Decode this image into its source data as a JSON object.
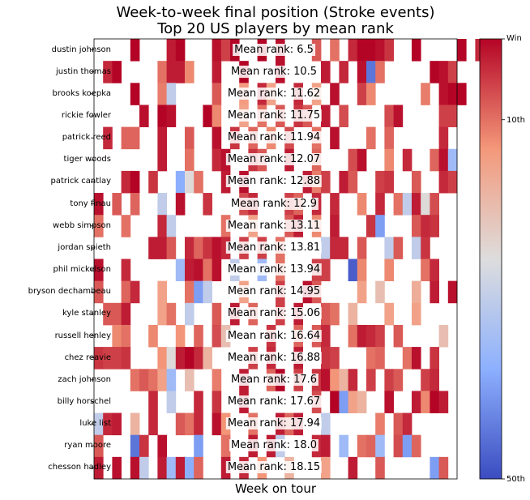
{
  "chart_data": {
    "type": "heatmap",
    "title": "Week-to-week final position (Stroke events)",
    "subtitle": "Top 20 US players by mean rank",
    "xlabel": "Week on tour",
    "colorbar": {
      "colormap": "coolwarm",
      "ticks": [
        "Win",
        "10th",
        "50th"
      ],
      "domain": [
        1,
        50
      ],
      "low_color": "#b40426",
      "high_color": "#3b4cc0"
    },
    "players": [
      {
        "name": "dustin johnson",
        "mean_label": "Mean rank: 6.5"
      },
      {
        "name": "justin thomas",
        "mean_label": "Mean rank: 10.5"
      },
      {
        "name": "brooks koepka",
        "mean_label": "Mean rank: 11.62"
      },
      {
        "name": "rickie fowler",
        "mean_label": "Mean rank: 11.75"
      },
      {
        "name": "patrick reed",
        "mean_label": "Mean rank: 11.94"
      },
      {
        "name": "tiger woods",
        "mean_label": "Mean rank: 12.07"
      },
      {
        "name": "patrick cantlay",
        "mean_label": "Mean rank: 12.88"
      },
      {
        "name": "tony finau",
        "mean_label": "Mean rank: 12.9"
      },
      {
        "name": "webb simpson",
        "mean_label": "Mean rank: 13.11"
      },
      {
        "name": "jordan spieth",
        "mean_label": "Mean rank: 13.81"
      },
      {
        "name": "phil mickelson",
        "mean_label": "Mean rank: 13.94"
      },
      {
        "name": "bryson dechambeau",
        "mean_label": "Mean rank: 14.95"
      },
      {
        "name": "kyle stanley",
        "mean_label": "Mean rank: 15.06"
      },
      {
        "name": "russell henley",
        "mean_label": "Mean rank: 16.64"
      },
      {
        "name": "chez reavie",
        "mean_label": "Mean rank: 16.88"
      },
      {
        "name": "zach johnson",
        "mean_label": "Mean rank: 17.6"
      },
      {
        "name": "billy horschel",
        "mean_label": "Mean rank: 17.67"
      },
      {
        "name": "luke list",
        "mean_label": "Mean rank: 17.94"
      },
      {
        "name": "ryan moore",
        "mean_label": "Mean rank: 18.0"
      },
      {
        "name": "chesson hadley",
        "mean_label": "Mean rank: 18.15"
      }
    ],
    "cells": [
      [
        [
          4,
          1
        ],
        [
          8,
          3
        ],
        [
          9,
          1
        ],
        [
          13,
          2
        ],
        [
          14,
          6
        ],
        [
          15,
          1
        ],
        [
          18,
          1
        ],
        [
          20,
          2
        ],
        [
          24,
          8
        ],
        [
          26,
          10
        ],
        [
          28,
          4
        ],
        [
          29,
          1
        ],
        [
          30,
          1
        ],
        [
          31,
          2
        ],
        [
          32,
          5
        ],
        [
          35,
          1
        ],
        [
          40,
          1
        ],
        [
          42,
          4
        ]
      ],
      [
        [
          1,
          4
        ],
        [
          2,
          1
        ],
        [
          7,
          10
        ],
        [
          8,
          3
        ],
        [
          9,
          3
        ],
        [
          10,
          12
        ],
        [
          13,
          3
        ],
        [
          16,
          1
        ],
        [
          20,
          2
        ],
        [
          25,
          3
        ],
        [
          27,
          4
        ],
        [
          29,
          2
        ],
        [
          30,
          45
        ],
        [
          31,
          10
        ],
        [
          37,
          1
        ],
        [
          38,
          2
        ],
        [
          39,
          6
        ]
      ],
      [
        [
          4,
          1
        ],
        [
          7,
          11
        ],
        [
          8,
          30
        ],
        [
          13,
          8
        ],
        [
          16,
          14
        ],
        [
          18,
          4
        ],
        [
          19,
          15
        ],
        [
          22,
          4
        ],
        [
          24,
          15
        ],
        [
          26,
          2
        ],
        [
          29,
          6
        ],
        [
          30,
          12
        ],
        [
          36,
          11
        ],
        [
          38,
          2
        ],
        [
          39,
          1
        ],
        [
          40,
          1
        ]
      ],
      [
        [
          5,
          2
        ],
        [
          7,
          1
        ],
        [
          8,
          2
        ],
        [
          12,
          1
        ],
        [
          13,
          12
        ],
        [
          16,
          15
        ],
        [
          18,
          10
        ],
        [
          20,
          8
        ],
        [
          22,
          5
        ],
        [
          23,
          8
        ],
        [
          25,
          3
        ],
        [
          27,
          7
        ],
        [
          32,
          7
        ],
        [
          33,
          2
        ],
        [
          38,
          6
        ],
        [
          39,
          6
        ]
      ],
      [
        [
          1,
          4
        ],
        [
          3,
          9
        ],
        [
          4,
          9
        ],
        [
          7,
          3
        ],
        [
          10,
          8
        ],
        [
          13,
          2
        ],
        [
          15,
          5
        ],
        [
          17,
          9
        ],
        [
          19,
          12
        ],
        [
          21,
          7
        ],
        [
          24,
          10
        ],
        [
          26,
          2
        ],
        [
          30,
          10
        ],
        [
          32,
          9
        ],
        [
          38,
          4
        ]
      ],
      [
        [
          7,
          3
        ],
        [
          10,
          10
        ],
        [
          13,
          4
        ],
        [
          14,
          2
        ],
        [
          17,
          5
        ],
        [
          18,
          8
        ],
        [
          21,
          3
        ],
        [
          24,
          9
        ],
        [
          28,
          7
        ],
        [
          29,
          2
        ],
        [
          32,
          12
        ],
        [
          34,
          4
        ],
        [
          37,
          9
        ],
        [
          38,
          2
        ],
        [
          39,
          35
        ]
      ],
      [
        [
          3,
          4
        ],
        [
          4,
          1
        ],
        [
          6,
          5
        ],
        [
          9,
          38
        ],
        [
          10,
          25
        ],
        [
          11,
          10
        ],
        [
          14,
          3
        ],
        [
          16,
          2
        ],
        [
          23,
          3
        ],
        [
          24,
          11
        ],
        [
          25,
          6
        ],
        [
          27,
          3
        ],
        [
          28,
          8
        ],
        [
          31,
          6
        ],
        [
          32,
          5
        ],
        [
          35,
          8
        ],
        [
          38,
          4
        ],
        [
          39,
          6
        ]
      ],
      [
        [
          0,
          2
        ],
        [
          2,
          8
        ],
        [
          4,
          9
        ],
        [
          7,
          30
        ],
        [
          9,
          2
        ],
        [
          12,
          5
        ],
        [
          16,
          7
        ],
        [
          17,
          4
        ],
        [
          21,
          6
        ],
        [
          22,
          9
        ],
        [
          24,
          4
        ],
        [
          26,
          4
        ],
        [
          29,
          12
        ],
        [
          31,
          4
        ],
        [
          33,
          10
        ],
        [
          34,
          30
        ],
        [
          35,
          3
        ],
        [
          36,
          25
        ],
        [
          37,
          7
        ]
      ],
      [
        [
          0,
          10
        ],
        [
          3,
          10
        ],
        [
          7,
          4
        ],
        [
          8,
          30
        ],
        [
          14,
          10
        ],
        [
          17,
          15
        ],
        [
          21,
          8
        ],
        [
          22,
          3
        ],
        [
          24,
          12
        ],
        [
          26,
          3
        ],
        [
          30,
          5
        ],
        [
          31,
          40
        ],
        [
          35,
          8
        ],
        [
          36,
          4
        ],
        [
          37,
          5
        ]
      ],
      [
        [
          6,
          3
        ],
        [
          7,
          3
        ],
        [
          8,
          8
        ],
        [
          10,
          4
        ],
        [
          11,
          9
        ],
        [
          12,
          5
        ],
        [
          13,
          2
        ],
        [
          14,
          4
        ],
        [
          16,
          6
        ],
        [
          18,
          6
        ],
        [
          20,
          10
        ],
        [
          25,
          30
        ],
        [
          26,
          4
        ],
        [
          27,
          4
        ],
        [
          29,
          8
        ],
        [
          32,
          30
        ],
        [
          33,
          8
        ],
        [
          35,
          30
        ],
        [
          36,
          5
        ]
      ],
      [
        [
          0,
          2
        ],
        [
          3,
          4
        ],
        [
          9,
          35
        ],
        [
          10,
          3
        ],
        [
          11,
          2
        ],
        [
          12,
          10
        ],
        [
          13,
          2
        ],
        [
          15,
          30
        ],
        [
          18,
          35
        ],
        [
          20,
          10
        ],
        [
          24,
          6
        ],
        [
          25,
          6
        ],
        [
          28,
          48
        ],
        [
          29,
          12
        ],
        [
          32,
          12
        ],
        [
          36,
          10
        ],
        [
          37,
          4
        ]
      ],
      [
        [
          0,
          8
        ],
        [
          3,
          9
        ],
        [
          4,
          4
        ],
        [
          7,
          15
        ],
        [
          10,
          10
        ],
        [
          11,
          40
        ],
        [
          12,
          30
        ],
        [
          16,
          15
        ],
        [
          20,
          6
        ],
        [
          23,
          2
        ],
        [
          24,
          8
        ],
        [
          29,
          15
        ],
        [
          31,
          20
        ],
        [
          35,
          17
        ],
        [
          37,
          3
        ],
        [
          39,
          2
        ]
      ],
      [
        [
          1,
          8
        ],
        [
          2,
          8
        ],
        [
          3,
          3
        ],
        [
          7,
          15
        ],
        [
          8,
          10
        ],
        [
          10,
          30
        ],
        [
          13,
          8
        ],
        [
          15,
          3
        ],
        [
          17,
          9
        ],
        [
          20,
          6
        ],
        [
          22,
          3
        ],
        [
          25,
          8
        ],
        [
          26,
          10
        ],
        [
          28,
          18
        ],
        [
          32,
          15
        ],
        [
          35,
          15
        ]
      ],
      [
        [
          2,
          12
        ],
        [
          3,
          10
        ],
        [
          6,
          12
        ],
        [
          9,
          13
        ],
        [
          11,
          9
        ],
        [
          13,
          7
        ],
        [
          14,
          20
        ],
        [
          19,
          5
        ],
        [
          22,
          9
        ],
        [
          24,
          8
        ],
        [
          25,
          4
        ],
        [
          28,
          10
        ],
        [
          29,
          3
        ],
        [
          30,
          4
        ],
        [
          31,
          6
        ],
        [
          33,
          8
        ],
        [
          38,
          20
        ]
      ],
      [
        [
          0,
          5
        ],
        [
          1,
          6
        ],
        [
          2,
          6
        ],
        [
          3,
          5
        ],
        [
          7,
          13
        ],
        [
          8,
          25
        ],
        [
          9,
          3
        ],
        [
          10,
          1
        ],
        [
          11,
          4
        ],
        [
          12,
          18
        ],
        [
          17,
          6
        ],
        [
          19,
          4
        ],
        [
          22,
          3
        ],
        [
          25,
          5
        ],
        [
          26,
          6
        ],
        [
          30,
          10
        ],
        [
          31,
          9
        ],
        [
          34,
          10
        ],
        [
          35,
          2
        ],
        [
          37,
          5
        ]
      ],
      [
        [
          4,
          10
        ],
        [
          5,
          8
        ],
        [
          6,
          10
        ],
        [
          7,
          15
        ],
        [
          8,
          35
        ],
        [
          10,
          20
        ],
        [
          13,
          11
        ],
        [
          16,
          3
        ],
        [
          19,
          9
        ],
        [
          20,
          1
        ],
        [
          22,
          6
        ],
        [
          24,
          5
        ],
        [
          25,
          2
        ],
        [
          26,
          13
        ],
        [
          27,
          18
        ],
        [
          28,
          4
        ],
        [
          30,
          6
        ],
        [
          32,
          6
        ],
        [
          33,
          8
        ],
        [
          36,
          6
        ],
        [
          37,
          4
        ]
      ],
      [
        [
          6,
          4
        ],
        [
          8,
          30
        ],
        [
          11,
          4
        ],
        [
          13,
          5
        ],
        [
          16,
          3
        ],
        [
          24,
          7
        ],
        [
          26,
          1
        ],
        [
          27,
          40
        ],
        [
          28,
          15
        ],
        [
          29,
          18
        ],
        [
          32,
          2
        ],
        [
          35,
          3
        ],
        [
          36,
          12
        ],
        [
          37,
          1
        ],
        [
          38,
          3
        ]
      ],
      [
        [
          0,
          30
        ],
        [
          1,
          4
        ],
        [
          2,
          3
        ],
        [
          4,
          18
        ],
        [
          6,
          4
        ],
        [
          9,
          8
        ],
        [
          10,
          10
        ],
        [
          11,
          4
        ],
        [
          13,
          2
        ],
        [
          14,
          13
        ],
        [
          17,
          10
        ],
        [
          20,
          3
        ],
        [
          21,
          9
        ],
        [
          22,
          3
        ],
        [
          25,
          30
        ],
        [
          31,
          11
        ],
        [
          33,
          8
        ],
        [
          34,
          4
        ]
      ],
      [
        [
          0,
          8
        ],
        [
          4,
          45
        ],
        [
          5,
          5
        ],
        [
          7,
          2
        ],
        [
          11,
          40
        ],
        [
          14,
          10
        ],
        [
          17,
          3
        ],
        [
          19,
          3
        ],
        [
          20,
          30
        ],
        [
          24,
          4
        ],
        [
          25,
          3
        ],
        [
          27,
          35
        ],
        [
          29,
          10
        ],
        [
          30,
          9
        ],
        [
          31,
          35
        ],
        [
          33,
          7
        ],
        [
          34,
          40
        ],
        [
          35,
          9
        ]
      ],
      [
        [
          0,
          3
        ],
        [
          2,
          2
        ],
        [
          4,
          2
        ],
        [
          5,
          30
        ],
        [
          7,
          3
        ],
        [
          8,
          35
        ],
        [
          9,
          3
        ],
        [
          10,
          38
        ],
        [
          11,
          9
        ],
        [
          14,
          3
        ],
        [
          16,
          4
        ],
        [
          18,
          13
        ],
        [
          21,
          18
        ],
        [
          25,
          15
        ],
        [
          28,
          3
        ],
        [
          31,
          8
        ],
        [
          37,
          40
        ],
        [
          38,
          8
        ]
      ]
    ]
  }
}
